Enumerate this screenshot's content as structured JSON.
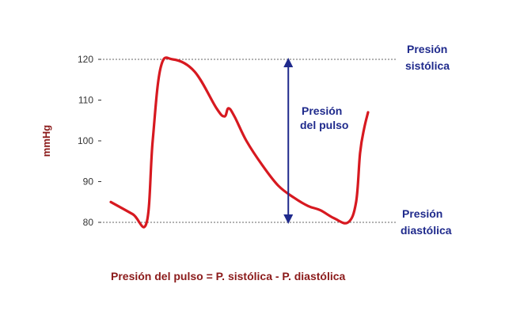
{
  "chart_data": {
    "type": "line",
    "ylabel": "mmHg",
    "ylim": [
      80,
      120
    ],
    "yticks": [
      80,
      90,
      100,
      110,
      120
    ],
    "ytick_labels": [
      "80",
      "90",
      "100",
      "110",
      "120"
    ],
    "series": [
      {
        "x": [
          0,
          0.55,
          0.9,
          1.05,
          1.25,
          1.55,
          2.1,
          2.65,
          2.85,
          2.95,
          3.1,
          3.4,
          3.8,
          4.2,
          4.6,
          4.95,
          5.25,
          5.6,
          5.95,
          6.15,
          6.25,
          6.35,
          6.45
        ],
        "y": [
          85,
          82,
          80,
          100,
          118,
          120,
          117,
          108,
          106,
          108,
          106,
          100,
          94,
          89,
          86,
          84,
          83,
          81,
          80,
          85,
          97,
          103,
          107
        ]
      }
    ],
    "reference_lines": [
      {
        "y": 120,
        "label_line1": "Presión",
        "label_line2": "sistólica"
      },
      {
        "y": 80,
        "label_line1": "Presión",
        "label_line2": "diastólica"
      }
    ],
    "pulse_arrow": {
      "x": 4.45,
      "y_from": 80,
      "y_to": 120,
      "label_line1": "Presión",
      "label_line2": "del pulso"
    },
    "formula": "Presión del pulso = P. sistólica - P. diastólica",
    "colors": {
      "curve": "#d71920",
      "arrow": "#1f2a8c",
      "label": "#1f2a8c",
      "axis_label": "#8b1a1a",
      "grid": "#333333"
    }
  }
}
